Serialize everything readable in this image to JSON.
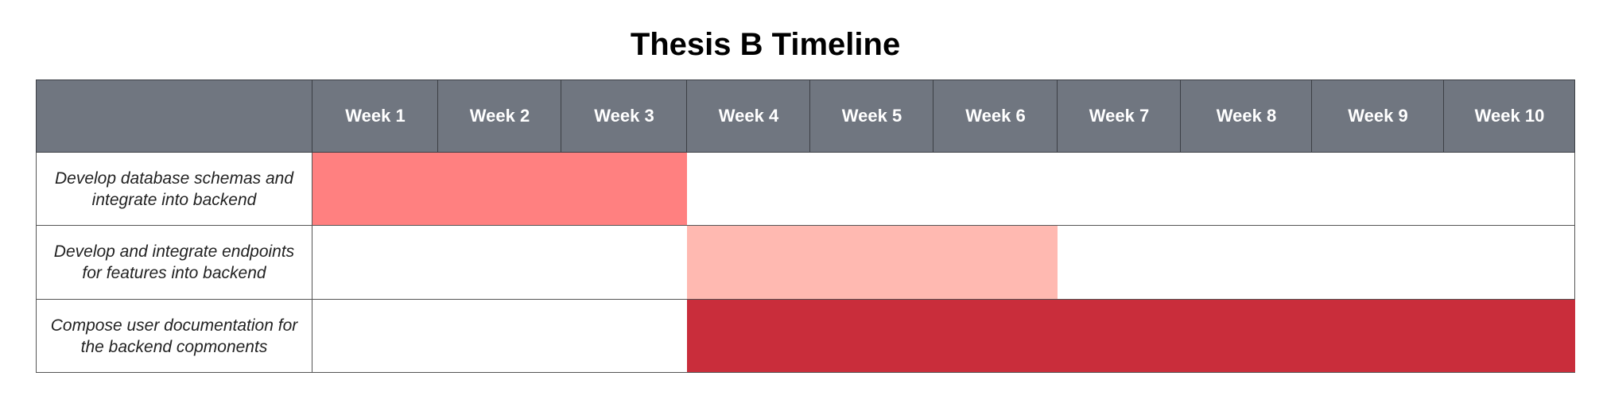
{
  "title": "Thesis B Timeline",
  "weeks": [
    "Week 1",
    "Week 2",
    "Week 3",
    "Week 4",
    "Week 5",
    "Week 6",
    "Week 7",
    "Week 8",
    "Week 9",
    "Week 10"
  ],
  "tasks": [
    {
      "label": "Develop database schemas and integrate into backend",
      "start_week": 1,
      "end_week": 3,
      "color": "#ff8080"
    },
    {
      "label": "Develop and integrate endpoints for features into backend",
      "start_week": 4,
      "end_week": 6,
      "color": "#ffb9b1"
    },
    {
      "label": "Compose user documentation for the backend copmonents",
      "start_week": 4,
      "end_week": 10,
      "color": "#c92d3b"
    }
  ],
  "colors": {
    "header_bg": "#707680",
    "header_text": "#ffffff"
  }
}
